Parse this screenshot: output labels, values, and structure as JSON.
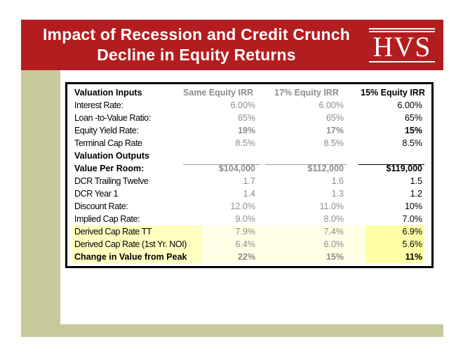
{
  "header": {
    "title_line1": "Impact of Recession and Credit Crunch",
    "title_line2": "Decline in Equity Returns",
    "logo_text": "HVS"
  },
  "colors": {
    "header_red": "#b31d1f",
    "band_olive": "#c7c99b",
    "highlight_yellow": "#ffffa6"
  },
  "table": {
    "columns": [
      "Valuation Inputs",
      "Same Equity IRR",
      "17% Equity IRR",
      "15% Equity IRR"
    ],
    "inputs": [
      {
        "label": "Interest Rate:",
        "same": "6.00%",
        "irr17": "6.00%",
        "irr15": "6.00%"
      },
      {
        "label": "Loan -to-Value Ratio:",
        "same": "65%",
        "irr17": "65%",
        "irr15": "65%"
      },
      {
        "label": "Equity Yield Rate:",
        "same": "19%",
        "irr17": "17%",
        "irr15": "15%"
      },
      {
        "label": "Terminal Cap Rate",
        "same": "8.5%",
        "irr17": "8.5%",
        "irr15": "8.5%"
      }
    ],
    "outputs_heading": "Valuation Outputs",
    "outputs": [
      {
        "label": "Value Per Room:",
        "same": "$104,000",
        "irr17": "$112,000",
        "irr15": "$119,000"
      },
      {
        "label": "DCR Trailing Twelve",
        "same": "1.7",
        "irr17": "1.6",
        "irr15": "1.5"
      },
      {
        "label": "DCR Year 1",
        "same": "1.4",
        "irr17": "1.3",
        "irr15": "1.2"
      },
      {
        "label": "Discount Rate:",
        "same": "12.0%",
        "irr17": "11.0%",
        "irr15": "10%"
      },
      {
        "label": "Implied Cap Rate:",
        "same": "9.0%",
        "irr17": "8.0%",
        "irr15": "7.0%"
      },
      {
        "label": "Derived Cap Rate TT",
        "same": "7.9%",
        "irr17": "7.4%",
        "irr15": "6.9%"
      },
      {
        "label": "Derived  Cap Rate (1st Yr. NOI)",
        "same": "6.4%",
        "irr17": "6.0%",
        "irr15": "5.6%"
      },
      {
        "label": "Change in Value from Peak",
        "same": "22%",
        "irr17": "15%",
        "irr15": "11%"
      }
    ]
  }
}
